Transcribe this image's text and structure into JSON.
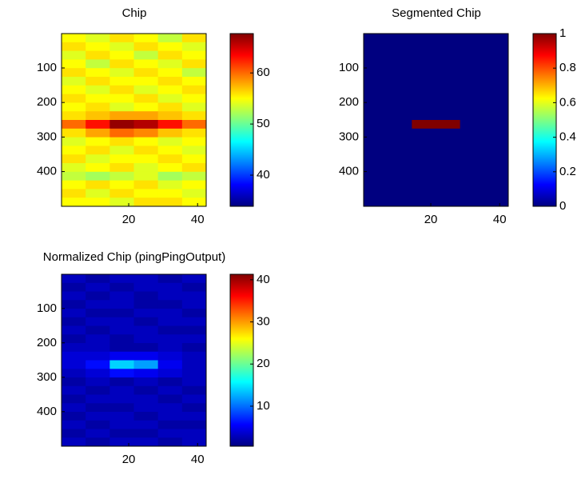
{
  "chart_data": [
    {
      "type": "heatmap",
      "title": "Chip",
      "colormap": "jet",
      "y_reversed": true,
      "xlim": [
        0.5,
        42.5
      ],
      "ylim": [
        0.5,
        500.5
      ],
      "xticks": [
        20,
        40
      ],
      "yticks": [
        100,
        200,
        300,
        400
      ],
      "clim": [
        33.9,
        67.7
      ],
      "cticks": [
        40,
        50,
        60
      ],
      "x": [
        4,
        11,
        18,
        25,
        32,
        39
      ],
      "y": [
        13,
        38,
        63,
        88,
        113,
        138,
        163,
        188,
        213,
        238,
        263,
        288,
        313,
        338,
        363,
        388,
        413,
        438,
        463,
        488
      ],
      "z": [
        [
          55,
          54,
          56,
          55,
          53,
          56
        ],
        [
          56,
          55,
          54,
          56,
          55,
          54
        ],
        [
          54,
          56,
          55,
          53,
          56,
          55
        ],
        [
          55,
          53,
          56,
          55,
          54,
          56
        ],
        [
          56,
          55,
          54,
          56,
          55,
          53
        ],
        [
          54,
          56,
          55,
          55,
          56,
          55
        ],
        [
          55,
          54,
          56,
          54,
          55,
          56
        ],
        [
          56,
          55,
          55,
          56,
          54,
          55
        ],
        [
          55,
          56,
          54,
          55,
          56,
          54
        ],
        [
          56,
          57,
          58,
          58,
          57,
          56
        ],
        [
          60,
          63,
          67,
          66,
          63,
          60
        ],
        [
          56,
          58,
          60,
          59,
          57,
          56
        ],
        [
          54,
          55,
          56,
          55,
          54,
          55
        ],
        [
          55,
          56,
          54,
          56,
          55,
          54
        ],
        [
          56,
          54,
          55,
          55,
          56,
          55
        ],
        [
          54,
          55,
          56,
          54,
          55,
          56
        ],
        [
          53,
          52,
          53,
          54,
          52,
          53
        ],
        [
          55,
          56,
          55,
          56,
          54,
          55
        ],
        [
          56,
          54,
          56,
          55,
          55,
          54
        ],
        [
          55,
          55,
          54,
          56,
          56,
          55
        ]
      ]
    },
    {
      "type": "heatmap",
      "title": "Segmented Chip",
      "colormap": "jet",
      "y_reversed": true,
      "xlim": [
        0.5,
        42.5
      ],
      "ylim": [
        0.5,
        500.5
      ],
      "xticks": [
        20,
        40
      ],
      "yticks": [
        100,
        200,
        300,
        400
      ],
      "clim": [
        0,
        1
      ],
      "cticks": [
        0,
        0.2,
        0.4,
        0.6,
        0.8,
        1
      ],
      "x": [
        4,
        11,
        18,
        25,
        32,
        39
      ],
      "y": [
        13,
        38,
        63,
        88,
        113,
        138,
        163,
        188,
        213,
        238,
        263,
        288,
        313,
        338,
        363,
        388,
        413,
        438,
        463,
        488
      ],
      "z": [
        [
          0,
          0,
          0,
          0,
          0,
          0
        ],
        [
          0,
          0,
          0,
          0,
          0,
          0
        ],
        [
          0,
          0,
          0,
          0,
          0,
          0
        ],
        [
          0,
          0,
          0,
          0,
          0,
          0
        ],
        [
          0,
          0,
          0,
          0,
          0,
          0
        ],
        [
          0,
          0,
          0,
          0,
          0,
          0
        ],
        [
          0,
          0,
          0,
          0,
          0,
          0
        ],
        [
          0,
          0,
          0,
          0,
          0,
          0
        ],
        [
          0,
          0,
          0,
          0,
          0,
          0
        ],
        [
          0,
          0,
          0,
          0,
          0,
          0
        ],
        [
          0,
          0,
          1,
          1,
          0,
          0
        ],
        [
          0,
          0,
          0,
          0,
          0,
          0
        ],
        [
          0,
          0,
          0,
          0,
          0,
          0
        ],
        [
          0,
          0,
          0,
          0,
          0,
          0
        ],
        [
          0,
          0,
          0,
          0,
          0,
          0
        ],
        [
          0,
          0,
          0,
          0,
          0,
          0
        ],
        [
          0,
          0,
          0,
          0,
          0,
          0
        ],
        [
          0,
          0,
          0,
          0,
          0,
          0
        ],
        [
          0,
          0,
          0,
          0,
          0,
          0
        ],
        [
          0,
          0,
          0,
          0,
          0,
          0
        ]
      ]
    },
    {
      "type": "heatmap",
      "title": "Normalized Chip (pingPingOutput)",
      "colormap": "jet",
      "y_reversed": true,
      "xlim": [
        0.5,
        42.5
      ],
      "ylim": [
        0.5,
        500.5
      ],
      "xticks": [
        20,
        40
      ],
      "yticks": [
        100,
        200,
        300,
        400
      ],
      "clim": [
        0.5,
        41.3
      ],
      "cticks": [
        10,
        20,
        30,
        40
      ],
      "x": [
        4,
        11,
        18,
        25,
        32,
        39
      ],
      "y": [
        13,
        38,
        63,
        88,
        113,
        138,
        163,
        188,
        213,
        238,
        263,
        288,
        313,
        338,
        363,
        388,
        413,
        438,
        463,
        488
      ],
      "z": [
        [
          3,
          2,
          3,
          3,
          2,
          3
        ],
        [
          2,
          3,
          2,
          3,
          3,
          2
        ],
        [
          3,
          2,
          3,
          2,
          3,
          3
        ],
        [
          2,
          3,
          3,
          2,
          2,
          3
        ],
        [
          3,
          2,
          2,
          3,
          3,
          2
        ],
        [
          2,
          3,
          3,
          2,
          3,
          3
        ],
        [
          3,
          2,
          3,
          3,
          2,
          2
        ],
        [
          2,
          3,
          2,
          3,
          3,
          3
        ],
        [
          3,
          3,
          2,
          2,
          3,
          2
        ],
        [
          4,
          4,
          5,
          5,
          4,
          3
        ],
        [
          4,
          6,
          14,
          12,
          5,
          3
        ],
        [
          3,
          4,
          6,
          5,
          4,
          3
        ],
        [
          2,
          3,
          2,
          3,
          2,
          3
        ],
        [
          3,
          2,
          3,
          2,
          3,
          2
        ],
        [
          2,
          3,
          3,
          3,
          2,
          3
        ],
        [
          3,
          2,
          2,
          3,
          3,
          2
        ],
        [
          2,
          3,
          3,
          2,
          3,
          3
        ],
        [
          3,
          2,
          3,
          3,
          2,
          2
        ],
        [
          2,
          3,
          2,
          2,
          3,
          3
        ],
        [
          3,
          2,
          3,
          3,
          2,
          3
        ]
      ]
    }
  ]
}
